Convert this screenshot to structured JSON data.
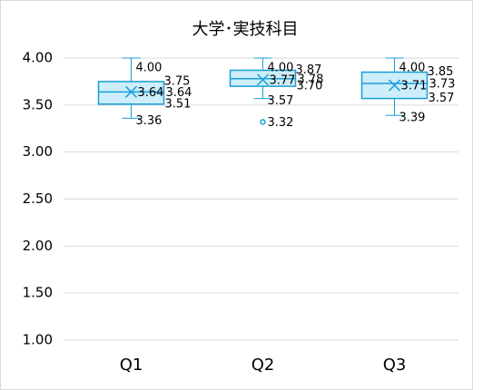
{
  "chart_data": {
    "type": "box",
    "title": "大学･実技科目",
    "categories": [
      "Q1",
      "Q2",
      "Q3"
    ],
    "boxes": [
      {
        "values": {
          "max": 4.0,
          "q3": 3.75,
          "mean": 3.64,
          "median": 3.64,
          "q1": 3.51,
          "min": 3.36,
          "outliers": []
        },
        "value_labels": {
          "max": "4.00",
          "q3": "3.75",
          "mean": "3.64",
          "median": "3.64",
          "q1": "3.51",
          "min": "3.36",
          "outliers": []
        }
      },
      {
        "values": {
          "max": 4.0,
          "q3": 3.87,
          "mean": 3.77,
          "median": 3.78,
          "q1": 3.7,
          "min": 3.57,
          "outliers": [
            3.32
          ]
        },
        "value_labels": {
          "max": "4.00",
          "q3": "3.87",
          "mean": "3.77",
          "median": "3.78",
          "q1": "3.70",
          "min": "3.57",
          "outliers": [
            "3.32"
          ]
        }
      },
      {
        "values": {
          "max": 4.0,
          "q3": 3.85,
          "mean": 3.71,
          "median": 3.73,
          "q1": 3.57,
          "min": 3.39,
          "outliers": []
        },
        "value_labels": {
          "max": "4.00",
          "q3": "3.85",
          "mean": "3.71",
          "median": "3.73",
          "q1": "3.57",
          "min": "3.39",
          "outliers": []
        }
      }
    ],
    "color": "#1a9fd6",
    "fill": "#cdeefa",
    "ylim": [
      1,
      4
    ],
    "yticks": [
      {
        "value": 1,
        "label": "1.00"
      },
      {
        "value": 1.5,
        "label": "1.50"
      },
      {
        "value": 2,
        "label": "2.00"
      },
      {
        "value": 2.5,
        "label": "2.50"
      },
      {
        "value": 3,
        "label": "3.00"
      },
      {
        "value": 3.5,
        "label": "3.50"
      },
      {
        "value": 4,
        "label": "4.00"
      }
    ],
    "grid": true
  }
}
